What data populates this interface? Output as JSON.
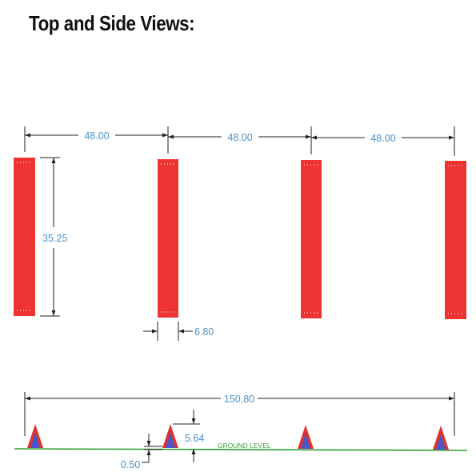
{
  "title": "Top and Side Views:",
  "top_view": {
    "spacing_labels": [
      "48.00",
      "48.00",
      "48.00"
    ],
    "length_label": "35.25",
    "width_label": "6.80",
    "pad_color": "#ee3333"
  },
  "side_view": {
    "overall_label": "150.80",
    "height_label": "5.64",
    "base_label": "0.50",
    "ground_label": "GROUND LEVEL",
    "ground_color": "#2ea02e",
    "outer_color": "#dd3333",
    "inner_color": "#4a55c8"
  },
  "colors": {
    "dimension_text": "#4a90c8"
  }
}
